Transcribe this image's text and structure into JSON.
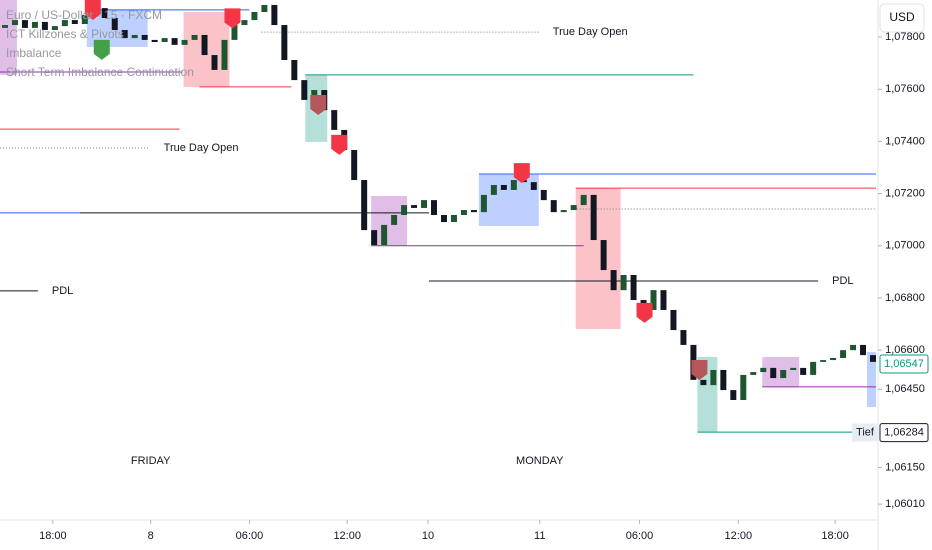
{
  "chart_data": {
    "type": "candlestick",
    "currency_button": "USD",
    "legend": [
      "Euro / US-Dollar · 15 · FXCM",
      "ICT Killzones & Pivots",
      "Imbalance",
      "Short Term Imbalance Continuation"
    ],
    "xlim": [
      0,
      88
    ],
    "xticks": [
      {
        "value": 5.3,
        "label": "18:00"
      },
      {
        "value": 15.1,
        "label": "8"
      },
      {
        "value": 25,
        "label": "06:00"
      },
      {
        "value": 34.8,
        "label": "12:00"
      },
      {
        "value": 42.9,
        "label": "10"
      },
      {
        "value": 54.1,
        "label": "11"
      },
      {
        "value": 64.1,
        "label": "06:00"
      },
      {
        "value": 74,
        "label": "12:00"
      },
      {
        "value": 83.7,
        "label": "18:00"
      }
    ],
    "ylim": [
      1.05949,
      1.07942
    ],
    "yticks": [
      {
        "value": 1.078,
        "label": "1,07800"
      },
      {
        "value": 1.076,
        "label": "1,07600"
      },
      {
        "value": 1.074,
        "label": "1,07400"
      },
      {
        "value": 1.072,
        "label": "1,07200"
      },
      {
        "value": 1.07,
        "label": "1,07000"
      },
      {
        "value": 1.068,
        "label": "1,06800"
      },
      {
        "value": 1.066,
        "label": "1,06600"
      },
      {
        "value": 1.0645,
        "label": "1,06450"
      },
      {
        "value": 1.0615,
        "label": "1,06150"
      },
      {
        "value": 1.0601,
        "label": "1,06010"
      }
    ],
    "up_color": "#1e5631",
    "down_color": "#131722",
    "open": [
      1.07835,
      1.07846,
      1.07865,
      1.07835,
      1.07858,
      1.07827,
      1.07842,
      1.07865,
      1.0785,
      1.07885,
      1.07911,
      1.07873,
      1.07827,
      1.07796,
      1.07808,
      1.07789,
      1.07781,
      1.07796,
      1.0777,
      1.07789,
      1.07808,
      1.07731,
      1.07674,
      1.07789,
      1.07846,
      1.07865,
      1.07896,
      1.07923,
      1.07846,
      1.07712,
      1.07635,
      1.07559,
      1.07597,
      1.0752,
      1.07444,
      1.07367,
      1.07252,
      1.0706,
      1.07003,
      1.0708,
      1.07118,
      1.07156,
      1.07145,
      1.07175,
      1.07118,
      1.07091,
      1.07118,
      1.07137,
      1.07129,
      1.07195,
      1.07233,
      1.07214,
      1.07252,
      1.07244,
      1.07214,
      1.07175,
      1.07129,
      1.07137,
      1.07156,
      1.07195,
      1.07022,
      1.06907,
      1.0683,
      1.06888,
      1.06792,
      1.06754,
      1.0683,
      1.06754,
      1.06677,
      1.0662,
      1.06486,
      1.06466,
      1.06524,
      1.06447,
      1.06409,
      1.06505,
      1.06516,
      1.06532,
      1.06493,
      1.06524,
      1.06532,
      1.06505,
      1.06555,
      1.06562,
      1.0657,
      1.066,
      1.0662,
      1.06581
    ],
    "close": [
      1.07846,
      1.07865,
      1.07835,
      1.07858,
      1.07827,
      1.07842,
      1.07865,
      1.0785,
      1.07885,
      1.07911,
      1.07873,
      1.07827,
      1.07796,
      1.07808,
      1.07789,
      1.07781,
      1.07796,
      1.0777,
      1.07789,
      1.07808,
      1.07731,
      1.07674,
      1.07789,
      1.07846,
      1.07865,
      1.07896,
      1.07923,
      1.07846,
      1.07712,
      1.07635,
      1.07559,
      1.07597,
      1.0752,
      1.07444,
      1.07367,
      1.07252,
      1.0706,
      1.07003,
      1.0708,
      1.07118,
      1.07156,
      1.07145,
      1.07175,
      1.07118,
      1.07091,
      1.07118,
      1.07137,
      1.07129,
      1.07195,
      1.07233,
      1.07214,
      1.07252,
      1.07244,
      1.07214,
      1.07175,
      1.07129,
      1.07137,
      1.07156,
      1.07195,
      1.07022,
      1.06907,
      1.0683,
      1.06888,
      1.06792,
      1.06754,
      1.0683,
      1.06754,
      1.06677,
      1.0662,
      1.06486,
      1.06466,
      1.06524,
      1.06447,
      1.06409,
      1.06505,
      1.06516,
      1.06532,
      1.06493,
      1.06524,
      1.06532,
      1.06505,
      1.06555,
      1.06562,
      1.0657,
      1.066,
      1.0662,
      1.06581,
      1.06555
    ],
    "zones": [
      {
        "x0": 0,
        "x1": 1.7,
        "top": 1.07942,
        "bottom": 1.07655,
        "color": "#9c27b0"
      },
      {
        "x0": 8.7,
        "x1": 14.8,
        "top": 1.07904,
        "bottom": 1.07762,
        "color": "#2962ff"
      },
      {
        "x0": 18.4,
        "x1": 23,
        "top": 1.07896,
        "bottom": 1.07609,
        "color": "#f23645"
      },
      {
        "x0": 30.6,
        "x1": 32.8,
        "top": 1.07655,
        "bottom": 1.07398,
        "color": "#089981"
      },
      {
        "x0": 37.2,
        "x1": 40.8,
        "top": 1.07191,
        "bottom": 1.07,
        "color": "#9c27b0"
      },
      {
        "x0": 48,
        "x1": 54,
        "top": 1.07275,
        "bottom": 1.07076,
        "color": "#2962ff"
      },
      {
        "x0": 57.7,
        "x1": 62.2,
        "top": 1.07221,
        "bottom": 1.06681,
        "color": "#f23645"
      },
      {
        "x0": 69.9,
        "x1": 71.9,
        "top": 1.06574,
        "bottom": 1.06286,
        "color": "#089981"
      },
      {
        "x0": 76.4,
        "x1": 80.1,
        "top": 1.06574,
        "bottom": 1.06459,
        "color": "#9c27b0"
      },
      {
        "x0": 86.9,
        "x1": 87.8,
        "top": 1.06593,
        "bottom": 1.06382,
        "color": "#2962ff"
      }
    ],
    "levels": [
      {
        "price": 1.07904,
        "x0": 9.7,
        "x1": 25,
        "color": "#2962ff",
        "style": "solid"
      },
      {
        "price": 1.07666,
        "x0": 0,
        "x1": 18.3,
        "color": "#9c27b0",
        "style": "solid"
      },
      {
        "price": 1.07655,
        "x0": 30.6,
        "x1": 69.5,
        "color": "#089981",
        "style": "solid"
      },
      {
        "price": 1.07609,
        "x0": 20,
        "x1": 29.2,
        "color": "#f23645",
        "style": "solid"
      },
      {
        "price": 1.07447,
        "x0": 0,
        "x1": 18,
        "color": "#f23645",
        "style": "solid"
      },
      {
        "price": 1.07819,
        "x0": 26.2,
        "x1": 54,
        "color": "#787b86",
        "style": "dotted",
        "label": "True Day Open"
      },
      {
        "price": 1.07375,
        "x0": 0,
        "x1": 15,
        "color": "#787b86",
        "style": "dotted",
        "label": "True Day Open"
      },
      {
        "price": 1.07126,
        "x0": 0,
        "x1": 8,
        "color": "#2962ff",
        "style": "solid"
      },
      {
        "price": 1.07126,
        "x0": 8,
        "x1": 43,
        "color": "#131722",
        "style": "solid"
      },
      {
        "price": 1.07141,
        "x0": 57.8,
        "x1": 87.8,
        "color": "#787b86",
        "style": "dotted"
      },
      {
        "price": 1.07275,
        "x0": 48,
        "x1": 87.8,
        "color": "#2962ff",
        "style": "solid"
      },
      {
        "price": 1.07221,
        "x0": 57.7,
        "x1": 87.8,
        "color": "#f23645",
        "style": "solid"
      },
      {
        "price": 1.07,
        "x0": 37.2,
        "x1": 58.5,
        "color": "#9c27b0",
        "style": "solid"
      },
      {
        "price": 1.06865,
        "x0": 43,
        "x1": 82,
        "color": "#131722",
        "style": "solid",
        "label": "PDL"
      },
      {
        "price": 1.06827,
        "x0": 0,
        "x1": 3.8,
        "color": "#131722",
        "style": "solid",
        "label": "PDL"
      },
      {
        "price": 1.06459,
        "x0": 76.4,
        "x1": 87.8,
        "color": "#9c27b0",
        "style": "solid"
      },
      {
        "price": 1.06286,
        "x0": 69.9,
        "x1": 87.8,
        "color": "#089981",
        "style": "solid"
      }
    ],
    "markers": [
      {
        "x": 9.3,
        "price": 1.07942,
        "color": "#f23645"
      },
      {
        "x": 10.2,
        "price": 1.07789,
        "color": "#43a047"
      },
      {
        "x": 23.3,
        "price": 1.0791,
        "color": "#f23645"
      },
      {
        "x": 31.9,
        "price": 1.07578,
        "color": "#b5565b"
      },
      {
        "x": 34,
        "price": 1.07425,
        "color": "#f23645"
      },
      {
        "x": 52.3,
        "price": 1.07317,
        "color": "#f23645"
      },
      {
        "x": 64.6,
        "price": 1.06781,
        "color": "#f23645"
      },
      {
        "x": 70.1,
        "price": 1.06562,
        "color": "#b5565b"
      }
    ],
    "day_labels": [
      {
        "x": 15.1,
        "label": "FRIDAY"
      },
      {
        "x": 54.1,
        "label": "MONDAY"
      }
    ],
    "price_tags": [
      {
        "value": 1.06547,
        "label": "1,06547",
        "color": "#089981"
      },
      {
        "value": 1.06284,
        "label": "1,06284",
        "color": "#131722",
        "caption": "Tief"
      }
    ]
  }
}
